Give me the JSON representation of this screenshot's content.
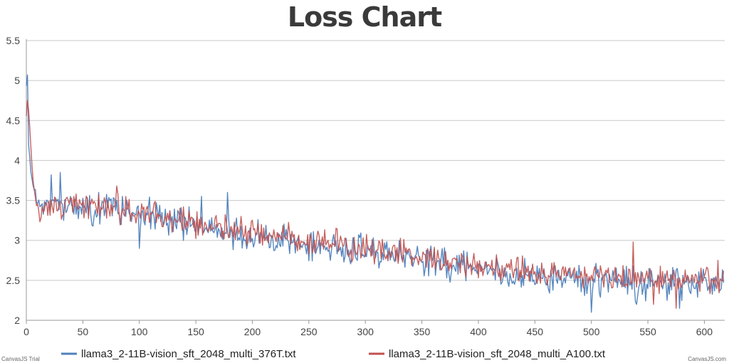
{
  "chart_data": {
    "type": "line",
    "title": "Loss Chart",
    "xlabel": "",
    "ylabel": "",
    "xlim": [
      0,
      618
    ],
    "ylim": [
      2,
      5.5
    ],
    "x_ticks": [
      0,
      50,
      100,
      150,
      200,
      250,
      300,
      350,
      400,
      450,
      500,
      550,
      600
    ],
    "y_ticks": [
      2,
      2.5,
      3,
      3.5,
      4,
      4.5,
      5,
      5.5
    ],
    "grid": "horizontal",
    "legend_position": "bottom",
    "series": [
      {
        "name": "llama3_2-11B-vision_sft_2048_multi_376T.txt",
        "color": "#4f81bc",
        "num_points": 618,
        "anchors": [
          [
            0,
            4.9
          ],
          [
            1,
            5.07
          ],
          [
            2,
            4.2
          ],
          [
            4,
            3.85
          ],
          [
            6,
            3.7
          ],
          [
            8,
            3.6
          ],
          [
            10,
            3.45
          ],
          [
            20,
            3.4
          ],
          [
            30,
            3.45
          ],
          [
            50,
            3.4
          ],
          [
            100,
            3.35
          ],
          [
            150,
            3.2
          ],
          [
            200,
            3.05
          ],
          [
            250,
            2.95
          ],
          [
            300,
            2.85
          ],
          [
            350,
            2.75
          ],
          [
            400,
            2.65
          ],
          [
            450,
            2.55
          ],
          [
            500,
            2.5
          ],
          [
            550,
            2.45
          ],
          [
            600,
            2.5
          ],
          [
            618,
            2.5
          ]
        ],
        "noise_amplitude": 0.16,
        "spikes": [
          [
            1,
            5.07
          ],
          [
            30,
            3.85
          ],
          [
            22,
            3.82
          ],
          [
            64,
            3.6
          ],
          [
            155,
            3.55
          ],
          [
            178,
            3.6
          ],
          [
            100,
            2.9
          ],
          [
            432,
            2.45
          ],
          [
            500,
            2.1
          ],
          [
            540,
            2.2
          ],
          [
            578,
            2.15
          ]
        ]
      },
      {
        "name": "llama3_2-11B-vision_sft_2048_multi_A100.txt",
        "color": "#c0504e",
        "num_points": 618,
        "anchors": [
          [
            0,
            4.5
          ],
          [
            1,
            4.75
          ],
          [
            3,
            4.42
          ],
          [
            5,
            3.9
          ],
          [
            8,
            3.5
          ],
          [
            10,
            3.4
          ],
          [
            20,
            3.35
          ],
          [
            30,
            3.4
          ],
          [
            50,
            3.45
          ],
          [
            100,
            3.35
          ],
          [
            150,
            3.2
          ],
          [
            200,
            3.1
          ],
          [
            250,
            3.0
          ],
          [
            300,
            2.9
          ],
          [
            350,
            2.8
          ],
          [
            400,
            2.7
          ],
          [
            450,
            2.6
          ],
          [
            500,
            2.55
          ],
          [
            550,
            2.5
          ],
          [
            600,
            2.5
          ],
          [
            618,
            2.5
          ]
        ],
        "noise_amplitude": 0.14,
        "spikes": [
          [
            1,
            4.75
          ],
          [
            3,
            4.42
          ],
          [
            80,
            3.68
          ],
          [
            190,
            3.3
          ],
          [
            537,
            2.98
          ],
          [
            612,
            2.75
          ],
          [
            555,
            2.2
          ],
          [
            575,
            2.15
          ]
        ]
      }
    ]
  },
  "credits": {
    "left": "CanvasJS Trial",
    "right": "CanvasJS.com"
  }
}
